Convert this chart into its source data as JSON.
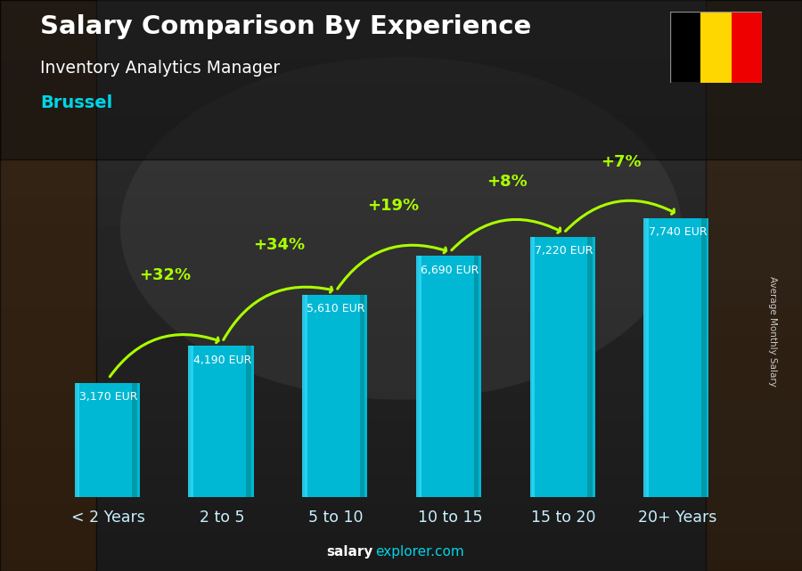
{
  "title": "Salary Comparison By Experience",
  "subtitle": "Inventory Analytics Manager",
  "city": "Brussel",
  "categories": [
    "< 2 Years",
    "2 to 5",
    "5 to 10",
    "10 to 15",
    "15 to 20",
    "20+ Years"
  ],
  "values": [
    3170,
    4190,
    5610,
    6690,
    7220,
    7740
  ],
  "labels": [
    "3,170 EUR",
    "4,190 EUR",
    "5,610 EUR",
    "6,690 EUR",
    "7,220 EUR",
    "7,740 EUR"
  ],
  "pct_labels": [
    "+32%",
    "+34%",
    "+19%",
    "+8%",
    "+7%"
  ],
  "bar_color_top": "#29d6f5",
  "bar_color_mid": "#00b8d4",
  "bar_color_side": "#0097a7",
  "pct_color": "#aaff00",
  "label_color": "#ffffff",
  "title_color": "#ffffff",
  "subtitle_color": "#ffffff",
  "city_color": "#00d4e8",
  "ylabel": "Average Monthly Salary",
  "footer_bold": "salary",
  "footer_normal": "explorer.com",
  "footer_bold_color": "#ffffff",
  "footer_normal_color": "#00d4e8",
  "flag_colors": [
    "#000000",
    "#FFD700",
    "#EE0000"
  ],
  "ylim": [
    0,
    9200
  ],
  "bg_dark": "#1a1a1a",
  "bg_mid": "#2e2e2e"
}
